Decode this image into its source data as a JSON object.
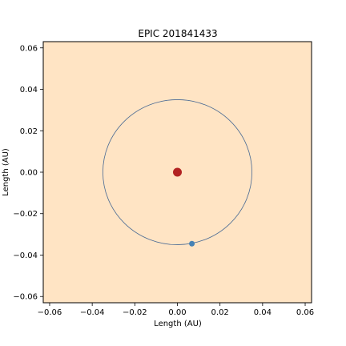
{
  "chart_data": {
    "type": "scatter",
    "title": "EPIC 201841433",
    "xlabel": "Length (AU)",
    "ylabel": "Length (AU)",
    "xlim": [
      -0.063,
      0.063
    ],
    "ylim": [
      -0.063,
      0.063
    ],
    "grid": false,
    "x_ticks": [
      -0.06,
      -0.04,
      -0.02,
      0.0,
      0.02,
      0.04,
      0.06
    ],
    "x_tick_labels": [
      "−0.06",
      "−0.04",
      "−0.02",
      "0.00",
      "0.02",
      "0.04",
      "0.06"
    ],
    "y_ticks": [
      0.06,
      0.04,
      0.02,
      0.0,
      -0.02,
      -0.04,
      -0.06
    ],
    "y_tick_labels": [
      "0.06",
      "0.04",
      "0.02",
      "0.00",
      "−0.02",
      "−0.04",
      "−0.06"
    ],
    "background_color": "#ffe4c4",
    "orbit": {
      "center": [
        0.0,
        0.0
      ],
      "radius": 0.035,
      "color": "#4a6a94"
    },
    "star": {
      "x": 0.0,
      "y": 0.0,
      "color": "#b22222"
    },
    "planet": {
      "x": 0.0068,
      "y": -0.0345,
      "color": "#4682b4"
    }
  }
}
